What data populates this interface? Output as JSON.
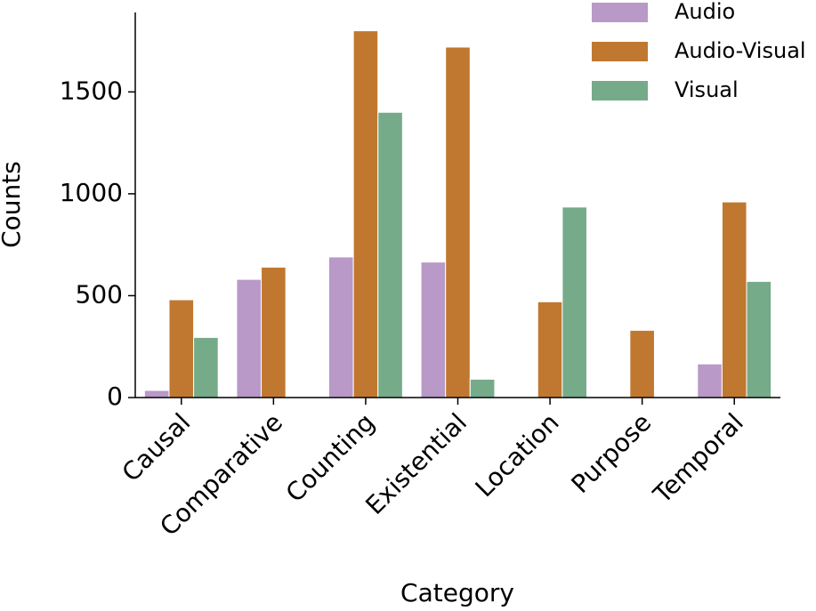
{
  "chart_data": {
    "type": "bar",
    "categories": [
      "Causal",
      "Comparative",
      "Counting",
      "Existential",
      "Location",
      "Purpose",
      "Temporal"
    ],
    "series": [
      {
        "name": "Audio",
        "color": "#b899c8",
        "values": [
          35,
          580,
          690,
          665,
          null,
          null,
          165
        ]
      },
      {
        "name": "Audio-Visual",
        "color": "#c07830",
        "values": [
          480,
          640,
          1800,
          1720,
          470,
          330,
          960
        ]
      },
      {
        "name": "Visual",
        "color": "#76ab8a",
        "values": [
          295,
          null,
          1400,
          90,
          935,
          null,
          570
        ]
      }
    ],
    "x_label": "Category",
    "y_label": "Counts",
    "ylim": [
      0,
      1890
    ],
    "yticks": [
      0,
      500,
      1000,
      1500
    ],
    "legend": "upper right",
    "grid": false
  }
}
